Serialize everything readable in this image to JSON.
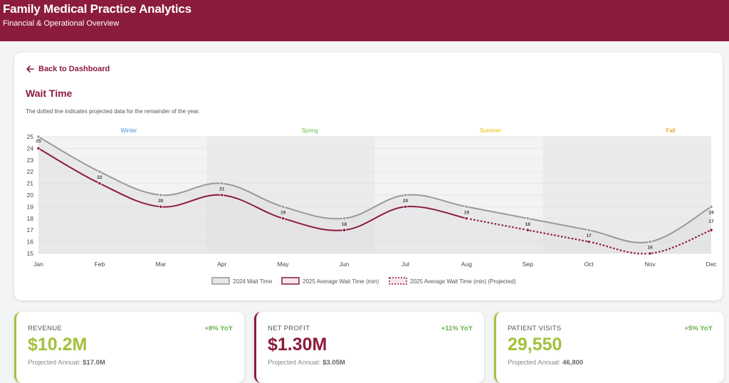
{
  "header": {
    "title": "Family Medical Practice Analytics",
    "subtitle": "Financial & Operational Overview"
  },
  "nav": {
    "back_label": "Back to Dashboard"
  },
  "page": {
    "title": "Wait Time",
    "note": "The dotted line indicates projected data for the remainder of the year."
  },
  "chart_data": {
    "type": "line",
    "categories": [
      "Jan",
      "Feb",
      "Mar",
      "Apr",
      "May",
      "Jun",
      "Jul",
      "Aug",
      "Sep",
      "Oct",
      "Nov",
      "Dec"
    ],
    "ylim": [
      15,
      25
    ],
    "yticks": [
      15,
      16,
      17,
      18,
      19,
      20,
      21,
      22,
      23,
      24,
      25
    ],
    "seasons": [
      "Winter",
      "Spring",
      "Summer",
      "Fall"
    ],
    "season_colors": [
      "#4a90e2",
      "#6bc04b",
      "#e5c000",
      "#e08a00"
    ],
    "series": [
      {
        "name": "2024 Wait Time",
        "values": [
          25,
          22,
          20,
          21,
          19,
          18,
          20,
          19,
          18,
          17,
          16,
          19
        ],
        "color": "#999999"
      },
      {
        "name": "2025 Average Wait Time (min)",
        "values": [
          24,
          21,
          19,
          20,
          18,
          17,
          19,
          18,
          null,
          null,
          null,
          null
        ],
        "color": "#8c1c3b"
      },
      {
        "name": "2025 Average Wait Time (min) (Projected)",
        "values": [
          null,
          null,
          null,
          null,
          null,
          null,
          null,
          18,
          17,
          16,
          15,
          17
        ],
        "color": "#8c1c3b",
        "dashed": true
      }
    ],
    "grid": true,
    "legend_position": "bottom"
  },
  "kpis": [
    {
      "label": "REVENUE",
      "yoy": "+8% YoY",
      "value": "$10.2M",
      "projected_label": "Projected Annual:",
      "projected_value": "$17.0M"
    },
    {
      "label": "NET PROFIT",
      "yoy": "+11% YoY",
      "value": "$1.30M",
      "projected_label": "Projected Annual:",
      "projected_value": "$3.05M"
    },
    {
      "label": "PATIENT VISITS",
      "yoy": "+5% YoY",
      "value": "29,550",
      "projected_label": "Projected Annual:",
      "projected_value": "46,800"
    }
  ]
}
